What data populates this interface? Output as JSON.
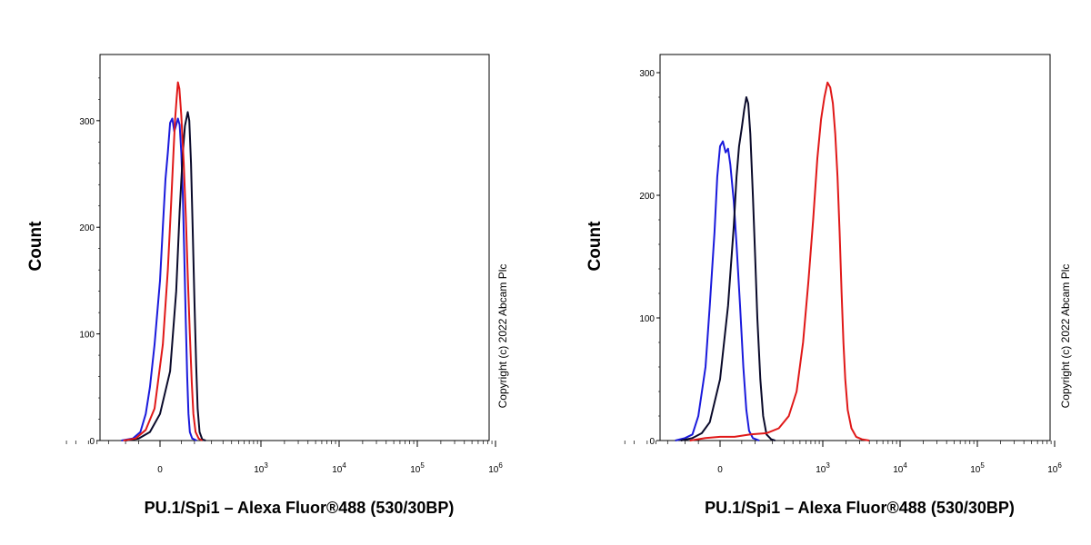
{
  "chart_data": [
    {
      "type": "line",
      "xlabel": "PU.1/Spi1 – Alexa Fluor®488 (530/30BP)",
      "ylabel": "Count",
      "yticks": [
        0,
        100,
        200,
        300
      ],
      "ylim": [
        0,
        345
      ],
      "xscale": "biexponential",
      "xticks": [
        {
          "base": "0",
          "exp": ""
        },
        {
          "base": "10",
          "exp": "3"
        },
        {
          "base": "10",
          "exp": "4"
        },
        {
          "base": "10",
          "exp": "5"
        },
        {
          "base": "10",
          "exp": "6"
        }
      ],
      "copyright": "Copyright (c) 2022 Abcam Plc",
      "series": [
        {
          "color": "#1a1adc",
          "points": [
            [
              -120,
              0
            ],
            [
              -70,
              2
            ],
            [
              -45,
              8
            ],
            [
              -30,
              25
            ],
            [
              -20,
              50
            ],
            [
              -10,
              90
            ],
            [
              0,
              150
            ],
            [
              5,
              200
            ],
            [
              10,
              245
            ],
            [
              15,
              270
            ],
            [
              20,
              298
            ],
            [
              25,
              302
            ],
            [
              30,
              290
            ],
            [
              35,
              296
            ],
            [
              40,
              302
            ],
            [
              45,
              296
            ],
            [
              50,
              270
            ],
            [
              55,
              230
            ],
            [
              60,
              170
            ],
            [
              65,
              110
            ],
            [
              70,
              60
            ],
            [
              75,
              25
            ],
            [
              80,
              8
            ],
            [
              90,
              2
            ],
            [
              110,
              0
            ]
          ]
        },
        {
          "color": "#0a0a2a",
          "points": [
            [
              -100,
              0
            ],
            [
              -50,
              2
            ],
            [
              -20,
              8
            ],
            [
              0,
              25
            ],
            [
              20,
              65
            ],
            [
              35,
              140
            ],
            [
              45,
              215
            ],
            [
              55,
              270
            ],
            [
              62,
              295
            ],
            [
              68,
              303
            ],
            [
              72,
              308
            ],
            [
              78,
              300
            ],
            [
              85,
              260
            ],
            [
              92,
              200
            ],
            [
              100,
              130
            ],
            [
              108,
              70
            ],
            [
              115,
              30
            ],
            [
              125,
              8
            ],
            [
              140,
              1
            ],
            [
              160,
              0
            ]
          ]
        },
        {
          "color": "#e01818",
          "points": [
            [
              -110,
              0
            ],
            [
              -60,
              2
            ],
            [
              -30,
              10
            ],
            [
              -10,
              30
            ],
            [
              5,
              90
            ],
            [
              15,
              160
            ],
            [
              22,
              220
            ],
            [
              28,
              270
            ],
            [
              32,
              300
            ],
            [
              36,
              320
            ],
            [
              40,
              336
            ],
            [
              44,
              330
            ],
            [
              50,
              305
            ],
            [
              58,
              260
            ],
            [
              65,
              210
            ],
            [
              72,
              155
            ],
            [
              80,
              100
            ],
            [
              88,
              55
            ],
            [
              95,
              25
            ],
            [
              105,
              8
            ],
            [
              120,
              2
            ],
            [
              140,
              0
            ]
          ]
        }
      ]
    },
    {
      "type": "line",
      "xlabel": "PU.1/Spi1 – Alexa Fluor®488 (530/30BP)",
      "ylabel": "Count",
      "yticks": [
        0,
        100,
        200,
        300
      ],
      "ylim": [
        0,
        300
      ],
      "xscale": "biexponential",
      "xticks": [
        {
          "base": "0",
          "exp": ""
        },
        {
          "base": "10",
          "exp": "3"
        },
        {
          "base": "10",
          "exp": "4"
        },
        {
          "base": "10",
          "exp": "5"
        },
        {
          "base": "10",
          "exp": "6"
        }
      ],
      "copyright": "Copyright (c) 2022 Abcam Plc",
      "series": [
        {
          "color": "#1a1adc",
          "points": [
            [
              -150,
              0
            ],
            [
              -100,
              2
            ],
            [
              -70,
              5
            ],
            [
              -50,
              20
            ],
            [
              -30,
              60
            ],
            [
              -20,
              110
            ],
            [
              -10,
              170
            ],
            [
              -5,
              215
            ],
            [
              0,
              240
            ],
            [
              5,
              244
            ],
            [
              10,
              235
            ],
            [
              15,
              238
            ],
            [
              20,
              225
            ],
            [
              28,
              195
            ],
            [
              35,
              160
            ],
            [
              45,
              110
            ],
            [
              55,
              60
            ],
            [
              65,
              25
            ],
            [
              75,
              8
            ],
            [
              90,
              2
            ],
            [
              120,
              0
            ]
          ]
        },
        {
          "color": "#0a0a2a",
          "points": [
            [
              -120,
              0
            ],
            [
              -70,
              2
            ],
            [
              -40,
              6
            ],
            [
              -20,
              15
            ],
            [
              0,
              50
            ],
            [
              15,
              110
            ],
            [
              28,
              175
            ],
            [
              35,
              215
            ],
            [
              42,
              240
            ],
            [
              50,
              255
            ],
            [
              58,
              270
            ],
            [
              65,
              280
            ],
            [
              72,
              275
            ],
            [
              80,
              250
            ],
            [
              90,
              200
            ],
            [
              100,
              150
            ],
            [
              110,
              100
            ],
            [
              125,
              50
            ],
            [
              140,
              20
            ],
            [
              160,
              5
            ],
            [
              190,
              1
            ],
            [
              220,
              0
            ]
          ]
        },
        {
          "color": "#e01818",
          "points": [
            [
              -80,
              0
            ],
            [
              -30,
              2
            ],
            [
              0,
              3
            ],
            [
              30,
              3
            ],
            [
              80,
              5
            ],
            [
              160,
              6
            ],
            [
              250,
              10
            ],
            [
              350,
              20
            ],
            [
              450,
              40
            ],
            [
              550,
              80
            ],
            [
              650,
              130
            ],
            [
              750,
              180
            ],
            [
              850,
              230
            ],
            [
              950,
              262
            ],
            [
              1050,
              280
            ],
            [
              1150,
              292
            ],
            [
              1250,
              288
            ],
            [
              1350,
              275
            ],
            [
              1450,
              250
            ],
            [
              1550,
              215
            ],
            [
              1650,
              170
            ],
            [
              1750,
              120
            ],
            [
              1850,
              80
            ],
            [
              1950,
              50
            ],
            [
              2100,
              25
            ],
            [
              2350,
              10
            ],
            [
              2700,
              3
            ],
            [
              3200,
              1
            ],
            [
              4000,
              0
            ]
          ]
        }
      ]
    }
  ]
}
